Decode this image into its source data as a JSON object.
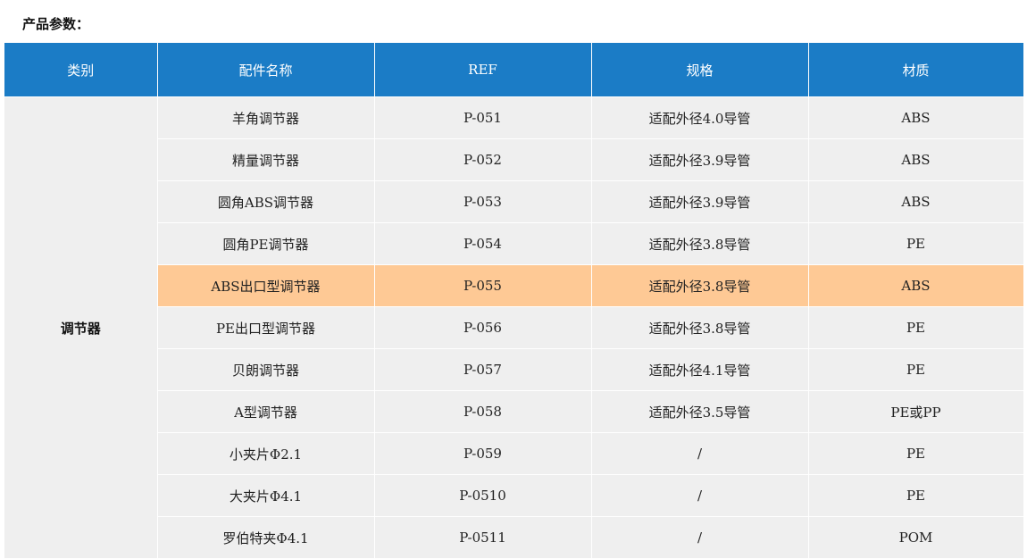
{
  "title": "产品参数：",
  "headers": [
    "类别",
    "配件名称",
    "REF",
    "规格",
    "材质"
  ],
  "category": "调节器",
  "highlight_color": "#fec995",
  "header_color": "#1b7cc6",
  "rows": [
    [
      "羊角调节器",
      "P-051",
      "适配外径4.0导管",
      "ABS"
    ],
    [
      "精量调节器",
      "P-052",
      "适配外径3.9导管",
      "ABS"
    ],
    [
      "圆角ABS调节器",
      "P-053",
      "适配外径3.9导管",
      "ABS"
    ],
    [
      "圆角PE调节器",
      "P-054",
      "适配外径3.8导管",
      "PE"
    ],
    [
      "ABS出口型调节器",
      "P-055",
      "适配外径3.8导管",
      "ABS"
    ],
    [
      "PE出口型调节器",
      "P-056",
      "适配外径3.8导管",
      "PE"
    ],
    [
      "贝朗调节器",
      "P-057",
      "适配外径4.1导管",
      "PE"
    ],
    [
      "A型调节器",
      "P-058",
      "适配外径3.5导管",
      "PE或PP"
    ],
    [
      "小夹片Φ2.1",
      "P-059",
      "/",
      "PE"
    ],
    [
      "大夹片Φ4.1",
      "P-0510",
      "/",
      "PE"
    ],
    [
      "罗伯特夹Φ4.1",
      "P-0511",
      "/",
      "POM"
    ]
  ],
  "highlighted_row": 4
}
